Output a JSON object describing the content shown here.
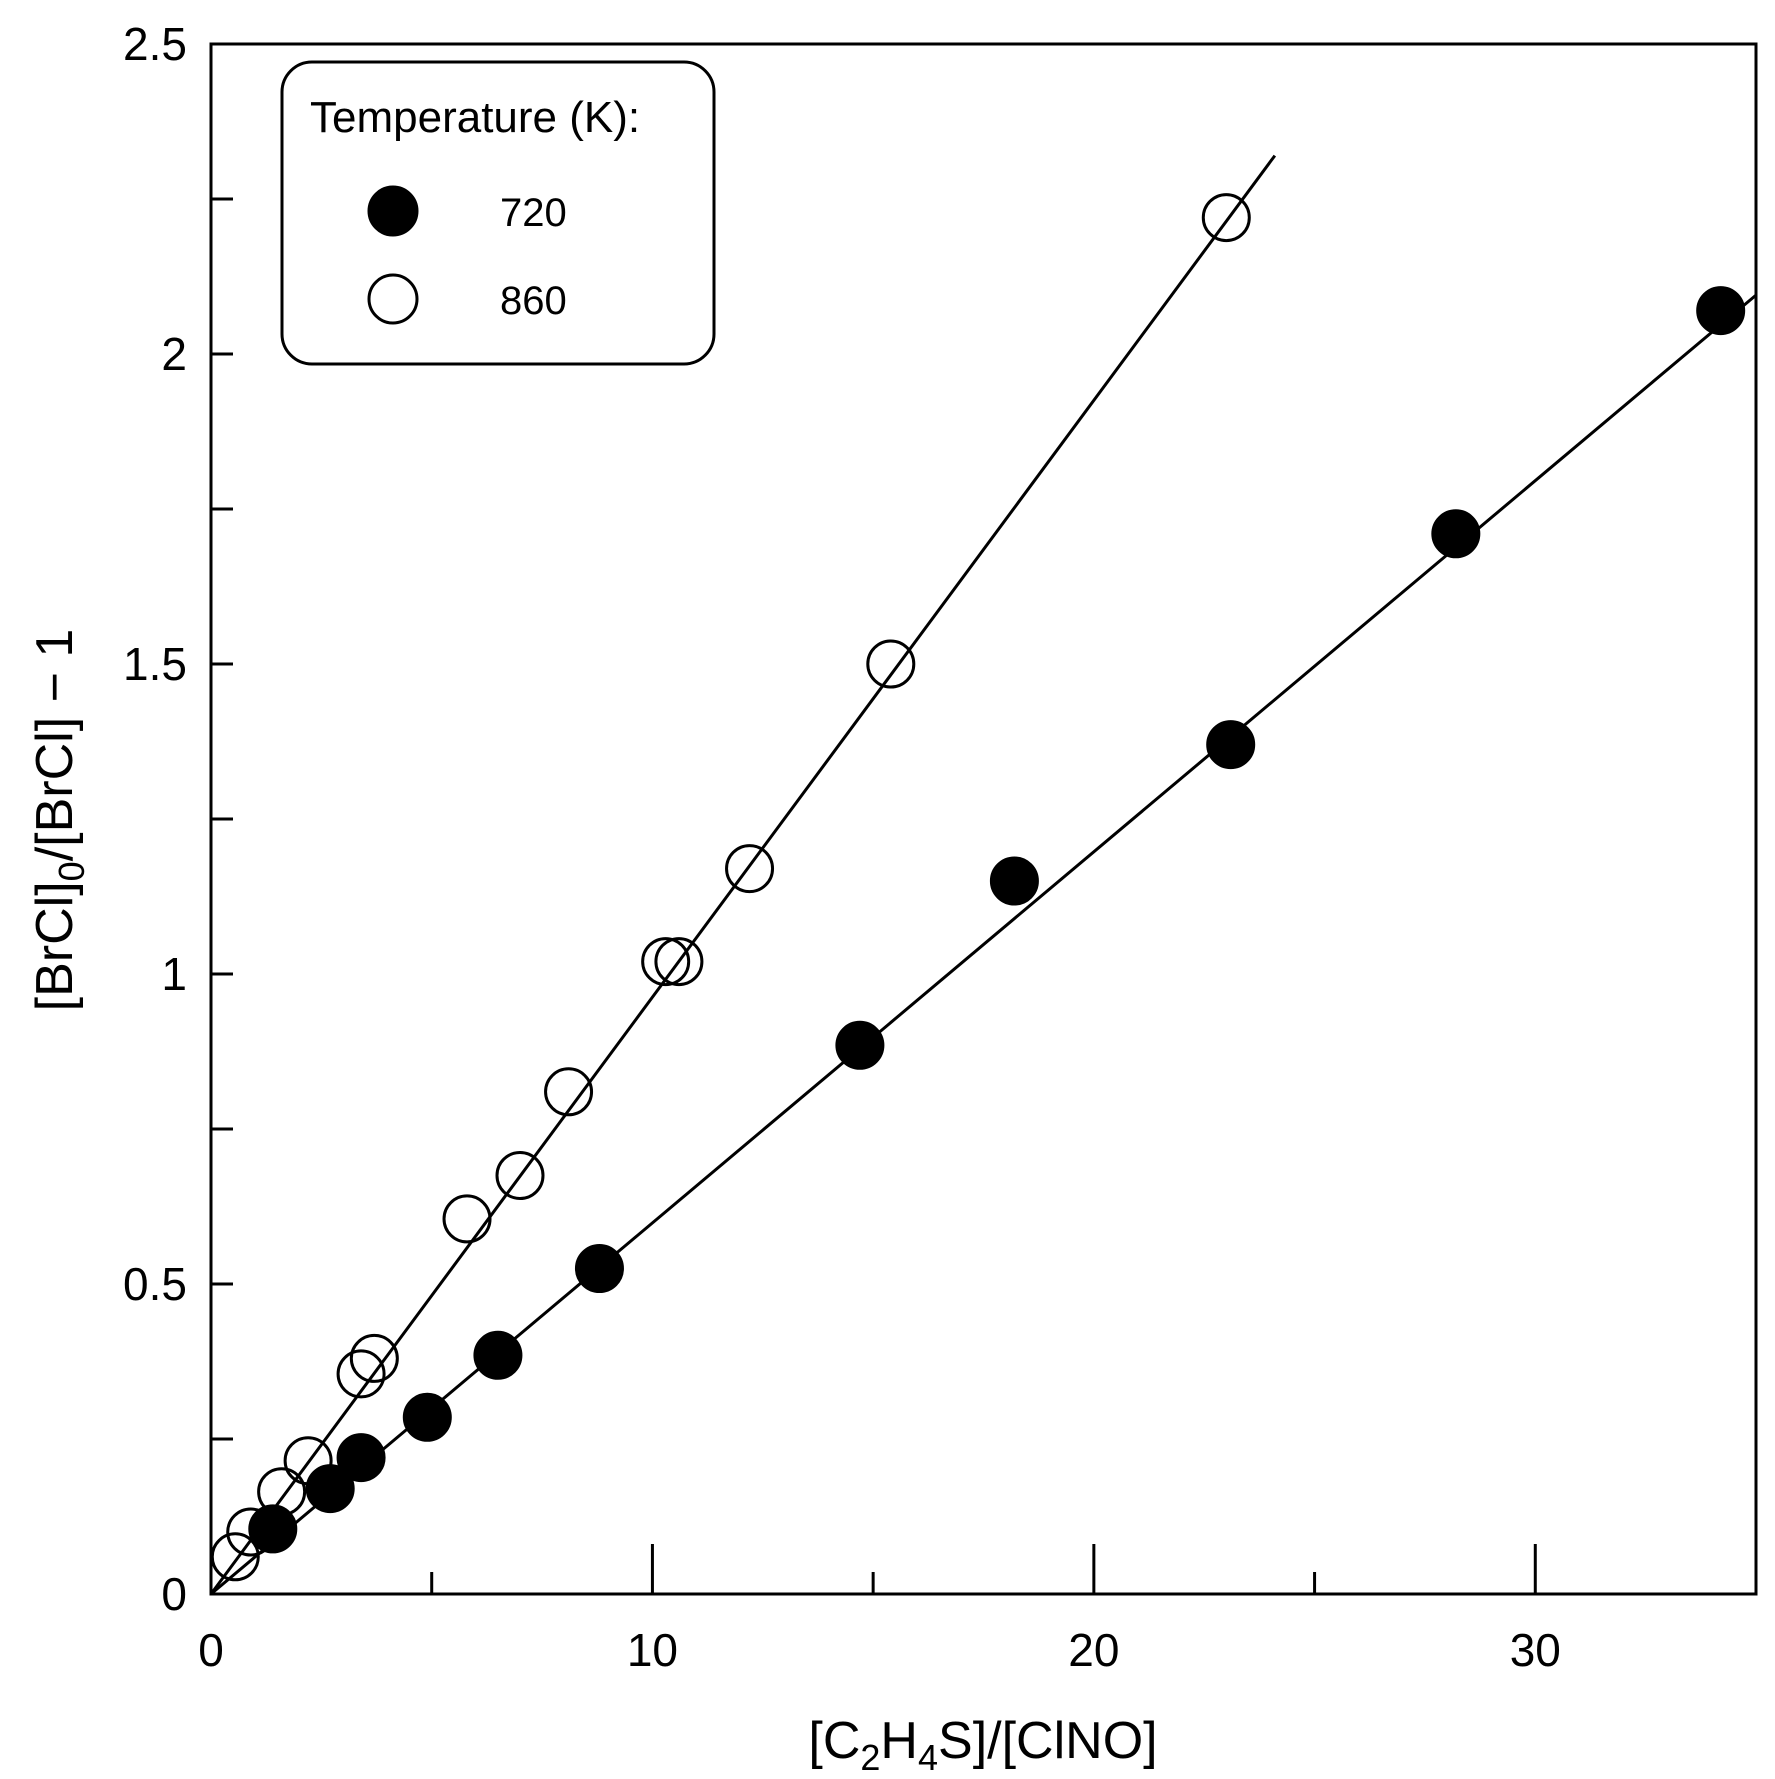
{
  "chart_data": {
    "type": "scatter",
    "title": "",
    "xlabel": "[C2H4S]/[ClNO]",
    "xlabel_parts": {
      "a": "[C",
      "sub1": "2",
      "b": "H",
      "sub2": "4",
      "c": "S]/[ClNO]"
    },
    "ylabel": "[BrCl]0/[BrCl] − 1",
    "ylabel_parts": {
      "a": "[BrCl]",
      "sub": "0",
      "b": "/[BrCl] − 1"
    },
    "xlim": [
      0,
      35
    ],
    "ylim": [
      0,
      2.5
    ],
    "x_major_ticks": [
      0,
      10,
      20,
      30
    ],
    "x_minor_ticks": [
      5,
      15,
      25
    ],
    "x_tick_labels": [
      "0",
      "10",
      "20",
      "30"
    ],
    "y_major_ticks": [
      0,
      0.5,
      1,
      1.5,
      2,
      2.5
    ],
    "y_minor_ticks": [
      0.25,
      0.75,
      1.25,
      1.75,
      2.25
    ],
    "y_tick_labels": [
      "0",
      "0.5",
      "1",
      "1.5",
      "2",
      "2.5"
    ],
    "grid": false,
    "legend": {
      "title": "Temperature (K):",
      "placement": "top-left",
      "entries": [
        "720",
        "860"
      ]
    },
    "series": [
      {
        "name": "720",
        "marker": "filled-circle",
        "color": "#000000",
        "x": [
          1.4,
          2.7,
          3.4,
          4.9,
          6.5,
          8.8,
          14.7,
          18.2,
          23.1,
          28.2,
          34.2
        ],
        "y": [
          0.105,
          0.17,
          0.22,
          0.285,
          0.385,
          0.525,
          0.885,
          1.15,
          1.37,
          1.71,
          2.07
        ],
        "fit": {
          "x": [
            0,
            35
          ],
          "y": [
            0,
            2.095
          ]
        }
      },
      {
        "name": "860",
        "marker": "open-circle",
        "color": "#000000",
        "x": [
          0.55,
          0.9,
          1.6,
          2.2,
          3.4,
          3.7,
          5.8,
          7.0,
          8.1,
          10.3,
          10.6,
          12.2,
          15.4,
          23.0
        ],
        "y": [
          0.06,
          0.1,
          0.165,
          0.215,
          0.355,
          0.38,
          0.605,
          0.675,
          0.81,
          1.02,
          1.02,
          1.17,
          1.5,
          2.22
        ],
        "fit": {
          "x": [
            0,
            24.1
          ],
          "y": [
            0,
            2.32
          ]
        }
      }
    ]
  }
}
